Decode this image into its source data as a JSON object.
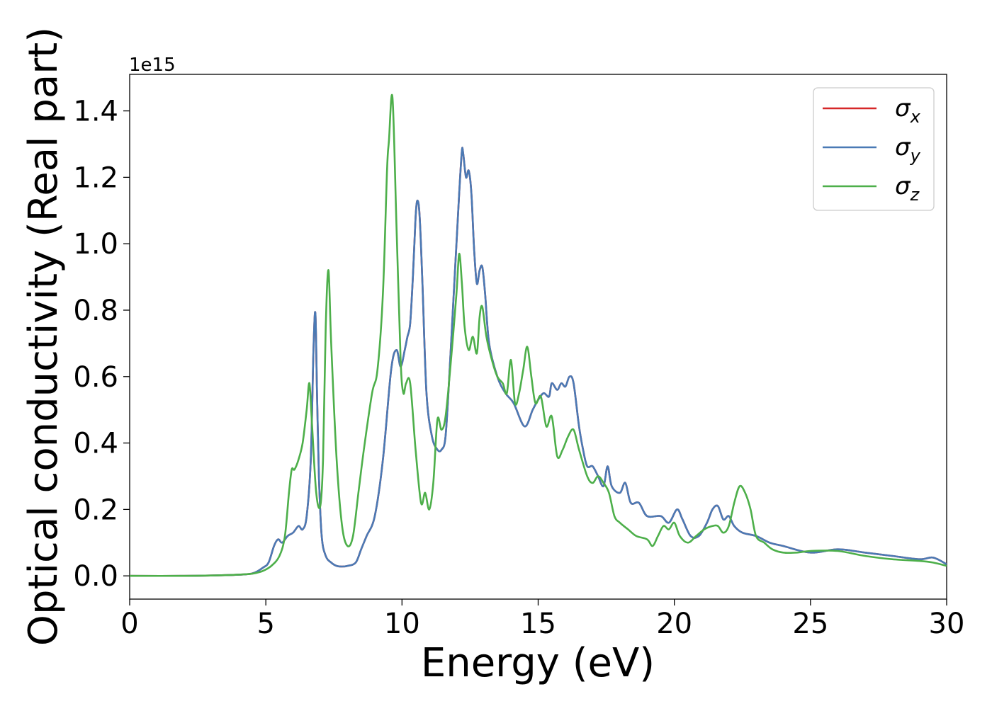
{
  "chart_data": {
    "type": "line",
    "title": "",
    "xlabel": "Energy (eV)",
    "ylabel": "Optical conductivity (Real part)",
    "y_offset_text": "1e15",
    "y_scale": 1000000000000000.0,
    "xlim": [
      0,
      30
    ],
    "ylim": [
      -0.07,
      1.51
    ],
    "xticks": [
      0,
      5,
      10,
      15,
      20,
      25,
      30
    ],
    "xtick_labels": [
      "0",
      "5",
      "10",
      "15",
      "20",
      "25",
      "30"
    ],
    "yticks": [
      0.0,
      0.2,
      0.4,
      0.6,
      0.8,
      1.0,
      1.2,
      1.4
    ],
    "ytick_labels": [
      "0.0",
      "0.2",
      "0.4",
      "0.6",
      "0.8",
      "1.0",
      "1.2",
      "1.4"
    ],
    "grid": false,
    "legend_position": "upper right",
    "colors": {
      "sigma_x": "#d62728",
      "sigma_y": "#4a7ab5",
      "sigma_z": "#4daf4a"
    },
    "series": [
      {
        "key": "sigma_x",
        "name": "σx",
        "symbol": "σ",
        "subscript": "x",
        "color": "#d62728",
        "same_as": "sigma_y"
      },
      {
        "key": "sigma_y",
        "name": "σy",
        "symbol": "σ",
        "subscript": "y",
        "color": "#4a7ab5",
        "x": [
          0,
          2,
          3.5,
          4.3,
          4.6,
          4.9,
          5.1,
          5.3,
          5.45,
          5.6,
          5.8,
          6.0,
          6.2,
          6.35,
          6.5,
          6.65,
          6.75,
          6.82,
          6.88,
          6.95,
          7.05,
          7.2,
          7.4,
          7.6,
          7.8,
          8.0,
          8.3,
          8.5,
          8.7,
          9.0,
          9.3,
          9.6,
          9.8,
          9.95,
          10.1,
          10.2,
          10.3,
          10.4,
          10.5,
          10.57,
          10.65,
          10.75,
          10.9,
          11.1,
          11.3,
          11.45,
          11.6,
          11.75,
          11.9,
          12.0,
          12.1,
          12.2,
          12.25,
          12.35,
          12.45,
          12.55,
          12.65,
          12.75,
          12.85,
          12.95,
          13.05,
          13.2,
          13.5,
          13.8,
          14.1,
          14.5,
          14.8,
          15.0,
          15.2,
          15.4,
          15.5,
          15.7,
          15.85,
          16.0,
          16.15,
          16.3,
          16.5,
          16.65,
          16.8,
          17.0,
          17.2,
          17.4,
          17.55,
          17.7,
          18.0,
          18.2,
          18.4,
          18.7,
          19.0,
          19.5,
          19.8,
          20.1,
          20.3,
          20.6,
          20.9,
          21.2,
          21.4,
          21.6,
          21.8,
          22.0,
          22.2,
          22.5,
          23.0,
          23.5,
          24.0,
          25.0,
          26.0,
          27.0,
          28.0,
          29.0,
          29.5,
          30.0
        ],
        "values": [
          0.0,
          0.0,
          0.002,
          0.005,
          0.01,
          0.025,
          0.04,
          0.09,
          0.11,
          0.1,
          0.12,
          0.13,
          0.15,
          0.14,
          0.18,
          0.35,
          0.68,
          0.79,
          0.55,
          0.3,
          0.12,
          0.06,
          0.04,
          0.03,
          0.028,
          0.03,
          0.04,
          0.08,
          0.12,
          0.18,
          0.35,
          0.62,
          0.68,
          0.63,
          0.68,
          0.72,
          0.76,
          0.9,
          1.08,
          1.13,
          1.08,
          0.88,
          0.55,
          0.42,
          0.38,
          0.38,
          0.42,
          0.62,
          0.85,
          1.0,
          1.15,
          1.28,
          1.27,
          1.2,
          1.22,
          1.15,
          0.98,
          0.88,
          0.92,
          0.93,
          0.85,
          0.7,
          0.6,
          0.55,
          0.52,
          0.45,
          0.5,
          0.53,
          0.55,
          0.54,
          0.58,
          0.56,
          0.58,
          0.57,
          0.6,
          0.58,
          0.45,
          0.38,
          0.33,
          0.33,
          0.3,
          0.27,
          0.33,
          0.27,
          0.25,
          0.28,
          0.22,
          0.22,
          0.18,
          0.18,
          0.16,
          0.2,
          0.17,
          0.12,
          0.12,
          0.16,
          0.2,
          0.21,
          0.17,
          0.18,
          0.15,
          0.13,
          0.12,
          0.1,
          0.09,
          0.07,
          0.08,
          0.07,
          0.06,
          0.05,
          0.055,
          0.035
        ]
      },
      {
        "key": "sigma_z",
        "name": "σz",
        "symbol": "σ",
        "subscript": "z",
        "color": "#4daf4a",
        "x": [
          0,
          2,
          3.5,
          4.3,
          4.6,
          4.9,
          5.2,
          5.5,
          5.7,
          5.85,
          5.95,
          6.05,
          6.2,
          6.35,
          6.5,
          6.6,
          6.7,
          6.85,
          7.0,
          7.1,
          7.2,
          7.3,
          7.4,
          7.6,
          7.8,
          8.0,
          8.2,
          8.4,
          8.6,
          8.9,
          9.1,
          9.3,
          9.45,
          9.52,
          9.65,
          9.8,
          9.95,
          10.05,
          10.15,
          10.3,
          10.5,
          10.7,
          10.85,
          11.0,
          11.15,
          11.3,
          11.45,
          11.6,
          11.8,
          12.0,
          12.1,
          12.2,
          12.3,
          12.45,
          12.6,
          12.75,
          12.85,
          12.95,
          13.1,
          13.3,
          13.5,
          13.7,
          13.85,
          14.0,
          14.15,
          14.3,
          14.45,
          14.6,
          14.75,
          14.9,
          15.1,
          15.3,
          15.5,
          15.7,
          15.9,
          16.1,
          16.3,
          16.5,
          16.8,
          17.0,
          17.2,
          17.4,
          17.6,
          17.8,
          18.0,
          18.3,
          18.6,
          19.0,
          19.2,
          19.4,
          19.6,
          19.8,
          20.0,
          20.2,
          20.5,
          20.8,
          21.1,
          21.4,
          21.6,
          21.8,
          22.0,
          22.2,
          22.4,
          22.6,
          22.8,
          23.0,
          23.3,
          23.6,
          24.0,
          24.5,
          25.0,
          26.0,
          27.0,
          28.0,
          29.0,
          29.5,
          30.0
        ],
        "values": [
          0.0,
          0.0,
          0.002,
          0.005,
          0.008,
          0.015,
          0.03,
          0.06,
          0.12,
          0.25,
          0.32,
          0.32,
          0.35,
          0.4,
          0.5,
          0.58,
          0.45,
          0.25,
          0.21,
          0.35,
          0.75,
          0.92,
          0.7,
          0.35,
          0.15,
          0.09,
          0.12,
          0.25,
          0.38,
          0.55,
          0.62,
          0.85,
          1.22,
          1.31,
          1.44,
          1.05,
          0.65,
          0.55,
          0.58,
          0.58,
          0.38,
          0.22,
          0.25,
          0.2,
          0.28,
          0.47,
          0.44,
          0.48,
          0.65,
          0.85,
          0.97,
          0.88,
          0.75,
          0.68,
          0.72,
          0.67,
          0.78,
          0.81,
          0.72,
          0.65,
          0.6,
          0.58,
          0.55,
          0.65,
          0.52,
          0.55,
          0.62,
          0.69,
          0.6,
          0.52,
          0.54,
          0.45,
          0.48,
          0.36,
          0.38,
          0.42,
          0.44,
          0.38,
          0.3,
          0.28,
          0.3,
          0.28,
          0.25,
          0.18,
          0.16,
          0.14,
          0.12,
          0.11,
          0.09,
          0.12,
          0.15,
          0.14,
          0.16,
          0.12,
          0.1,
          0.12,
          0.14,
          0.15,
          0.15,
          0.13,
          0.15,
          0.22,
          0.27,
          0.25,
          0.2,
          0.12,
          0.1,
          0.08,
          0.07,
          0.07,
          0.075,
          0.075,
          0.06,
          0.05,
          0.045,
          0.04,
          0.03
        ]
      }
    ]
  }
}
